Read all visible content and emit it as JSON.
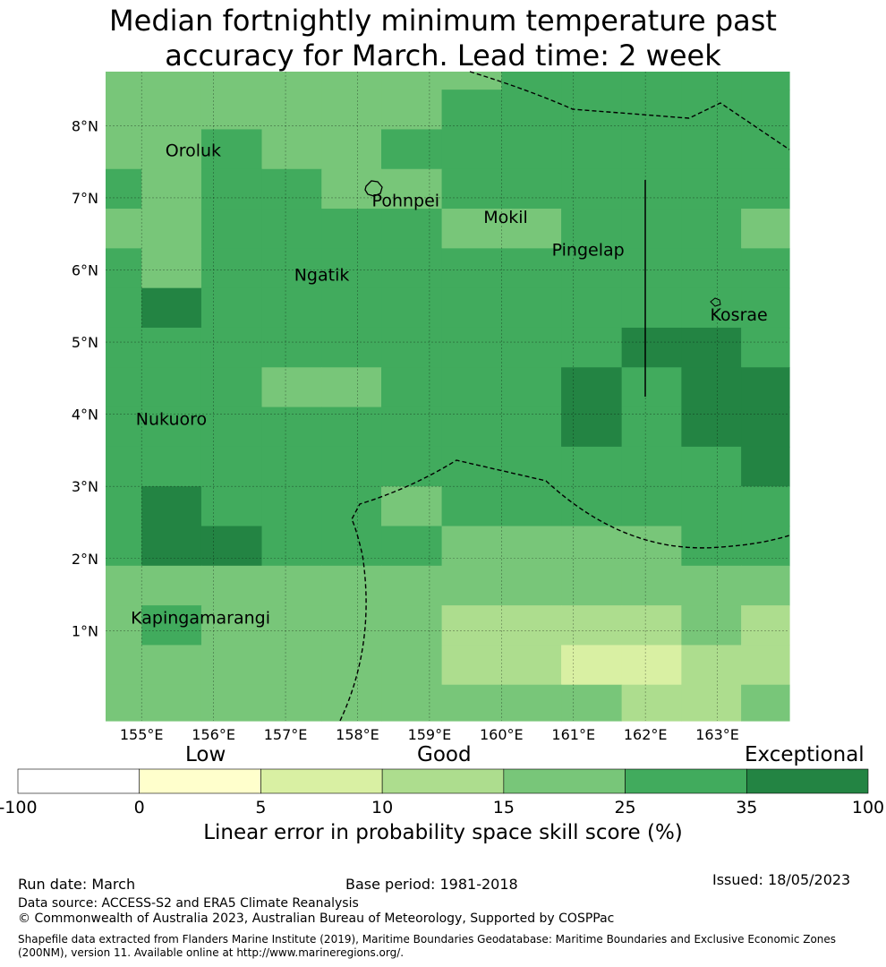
{
  "title": {
    "line1": "Median fortnightly minimum temperature past",
    "line2": "accuracy for March. Lead time: 2 week"
  },
  "map": {
    "lon_min": 154.5,
    "lon_max": 164.0,
    "lat_min": -0.25,
    "lat_max": 8.75,
    "x_ticks": [
      {
        "value": 155,
        "label": "155°E"
      },
      {
        "value": 156,
        "label": "156°E"
      },
      {
        "value": 157,
        "label": "157°E"
      },
      {
        "value": 158,
        "label": "158°E"
      },
      {
        "value": 159,
        "label": "159°E"
      },
      {
        "value": 160,
        "label": "160°E"
      },
      {
        "value": 161,
        "label": "161°E"
      },
      {
        "value": 162,
        "label": "162°E"
      },
      {
        "value": 163,
        "label": "163°E"
      }
    ],
    "y_ticks": [
      {
        "value": 8,
        "label": "8°N"
      },
      {
        "value": 7,
        "label": "7°N"
      },
      {
        "value": 6,
        "label": "6°N"
      },
      {
        "value": 5,
        "label": "5°N"
      },
      {
        "value": 4,
        "label": "4°N"
      },
      {
        "value": 3,
        "label": "3°N"
      },
      {
        "value": 2,
        "label": "2°N"
      },
      {
        "value": 1,
        "label": "1°N"
      }
    ],
    "grid_cols": [
      154.5,
      155.0,
      155.83,
      156.67,
      157.5,
      158.33,
      159.17,
      160.0,
      160.83,
      161.67,
      162.5,
      163.33,
      164.0
    ],
    "grid_rows": [
      8.75,
      8.5,
      7.95,
      7.4,
      6.85,
      6.3,
      5.75,
      5.2,
      4.65,
      4.1,
      3.55,
      3.0,
      2.45,
      1.9,
      1.35,
      0.8,
      0.25,
      -0.25
    ],
    "grid_classes": [
      [
        3,
        3,
        3,
        3,
        3,
        3,
        3,
        4,
        4,
        4,
        4,
        4
      ],
      [
        3,
        3,
        3,
        3,
        3,
        3,
        4,
        4,
        4,
        4,
        4,
        4
      ],
      [
        3,
        3,
        4,
        3,
        3,
        4,
        4,
        4,
        4,
        4,
        4,
        4
      ],
      [
        4,
        3,
        4,
        4,
        3,
        3,
        4,
        4,
        4,
        4,
        4,
        4
      ],
      [
        3,
        3,
        4,
        4,
        4,
        4,
        3,
        3,
        4,
        4,
        4,
        3
      ],
      [
        4,
        3,
        4,
        4,
        4,
        4,
        4,
        4,
        4,
        4,
        4,
        4
      ],
      [
        4,
        5,
        4,
        4,
        4,
        4,
        4,
        4,
        4,
        4,
        4,
        4
      ],
      [
        4,
        4,
        4,
        4,
        4,
        4,
        4,
        4,
        4,
        5,
        5,
        4
      ],
      [
        4,
        4,
        4,
        3,
        3,
        4,
        4,
        4,
        5,
        4,
        5,
        5
      ],
      [
        4,
        4,
        4,
        4,
        4,
        4,
        4,
        4,
        5,
        4,
        5,
        5
      ],
      [
        4,
        4,
        4,
        4,
        4,
        4,
        4,
        4,
        4,
        4,
        4,
        5
      ],
      [
        4,
        5,
        4,
        4,
        4,
        3,
        4,
        4,
        4,
        4,
        4,
        4
      ],
      [
        4,
        5,
        5,
        4,
        4,
        4,
        3,
        3,
        3,
        3,
        4,
        4
      ],
      [
        3,
        3,
        3,
        3,
        3,
        3,
        3,
        3,
        3,
        3,
        3,
        3
      ],
      [
        3,
        4,
        3,
        3,
        3,
        3,
        2,
        2,
        2,
        2,
        3,
        2
      ],
      [
        3,
        3,
        3,
        3,
        3,
        3,
        2,
        2,
        1,
        1,
        2,
        2
      ],
      [
        3,
        3,
        3,
        3,
        3,
        3,
        3,
        3,
        3,
        2,
        2,
        3
      ]
    ],
    "islands": [
      {
        "name": "Oroluk",
        "lon": 155.33,
        "lat": 7.58
      },
      {
        "name": "Pohnpei",
        "lon": 158.2,
        "lat": 6.88
      },
      {
        "name": "Mokil",
        "lon": 159.75,
        "lat": 6.65
      },
      {
        "name": "Pingelap",
        "lon": 160.7,
        "lat": 6.2
      },
      {
        "name": "Ngatik",
        "lon": 157.12,
        "lat": 5.85
      },
      {
        "name": "Kosrae",
        "lon": 162.9,
        "lat": 5.3
      },
      {
        "name": "Nukuoro",
        "lon": 154.92,
        "lat": 3.85
      },
      {
        "name": "Kapingamarangi",
        "lon": 154.85,
        "lat": 1.1
      }
    ]
  },
  "colorbar": {
    "categories": [
      {
        "label": "Low",
        "center": 5
      },
      {
        "label": "Good",
        "center": 10
      },
      {
        "label": "Exceptional",
        "center": 100
      }
    ],
    "bins": [
      {
        "from": -100,
        "to": 0,
        "color": "#ffffff"
      },
      {
        "from": 0,
        "to": 5,
        "color": "#ffffcc"
      },
      {
        "from": 5,
        "to": 10,
        "color": "#d9f0a3"
      },
      {
        "from": 10,
        "to": 15,
        "color": "#addd8e"
      },
      {
        "from": 15,
        "to": 25,
        "color": "#78c679"
      },
      {
        "from": 25,
        "to": 35,
        "color": "#41ab5d"
      },
      {
        "from": 35,
        "to": 100,
        "color": "#238443"
      }
    ],
    "tick_labels": [
      "-100",
      "0",
      "5",
      "10",
      "15",
      "25",
      "35",
      "100"
    ],
    "label": "Linear error in probability space skill score (%)"
  },
  "footer": {
    "run_date": "Run date: March",
    "base_period": "Base period: 1981-2018",
    "issued": "Issued: 18/05/2023",
    "data_source": "Data source: ACCESS-S2 and ERA5 Climate Reanalysis",
    "copyright": "© Commonwealth of Australia 2023, Australian Bureau of Meteorology, Supported by COSPPac",
    "shapefile": "Shapefile data extracted from Flanders Marine Institute (2019), Maritime Boundaries Geodatabase: Maritime Boundaries and Exclusive Economic Zones (200NM), version 11. Available online at http://www.marineregions.org/."
  }
}
